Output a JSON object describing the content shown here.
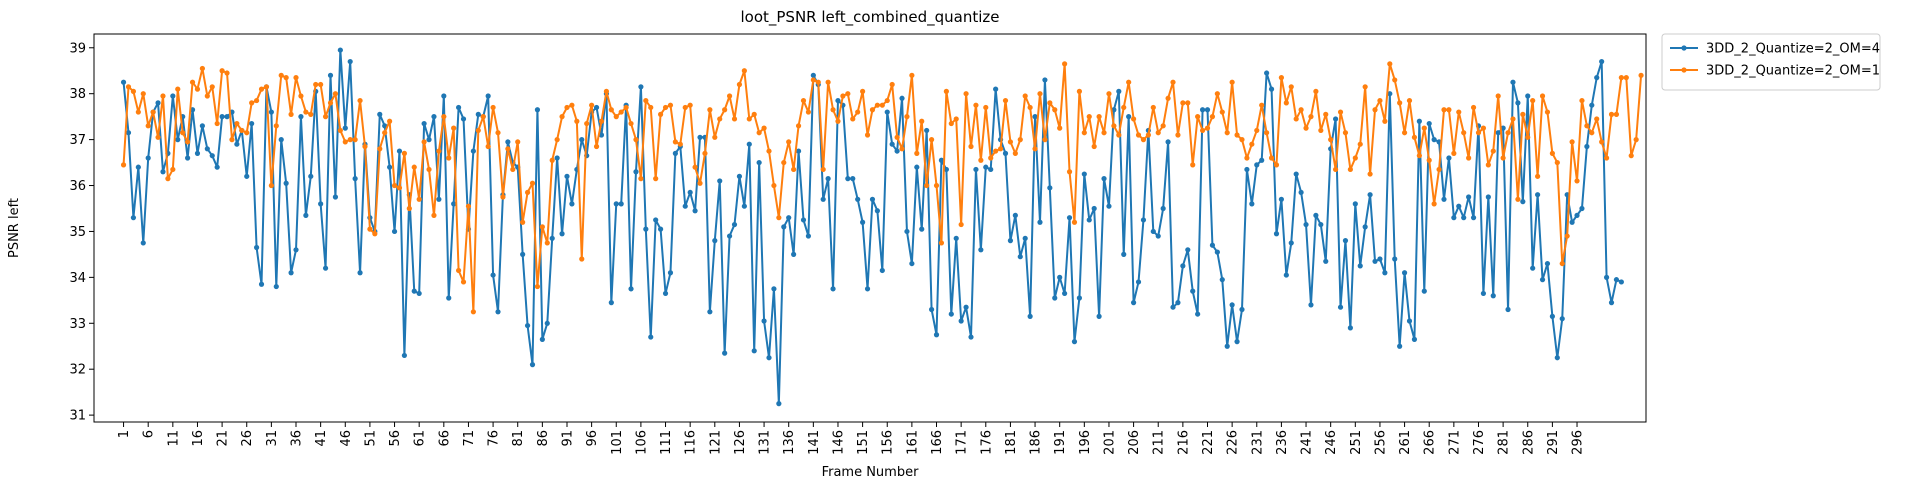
{
  "chart_data": {
    "type": "line",
    "title": "loot_PSNR left_combined_quantize",
    "xlabel": "Frame Number",
    "ylabel": "PSNR left",
    "xlim": [
      -5,
      310
    ],
    "ylim": [
      30.85,
      39.3
    ],
    "yticks": [
      31,
      32,
      33,
      34,
      35,
      36,
      37,
      38,
      39
    ],
    "xticks": [
      1,
      6,
      11,
      16,
      21,
      26,
      31,
      36,
      41,
      46,
      51,
      56,
      61,
      66,
      71,
      76,
      81,
      86,
      91,
      96,
      101,
      106,
      111,
      116,
      121,
      126,
      131,
      136,
      141,
      146,
      151,
      156,
      161,
      166,
      171,
      176,
      181,
      186,
      191,
      196,
      201,
      206,
      211,
      216,
      221,
      226,
      231,
      236,
      241,
      246,
      251,
      256,
      261,
      266,
      271,
      276,
      281,
      286,
      291,
      296
    ],
    "grid": false,
    "legend_position": "outside-top-right",
    "x_start": 1,
    "series": [
      {
        "name": "3DD_2_Quantize=2_OM=4",
        "color": "#1f77b4",
        "values": [
          38.25,
          37.15,
          35.3,
          36.4,
          34.75,
          36.6,
          37.6,
          37.8,
          36.3,
          36.7,
          37.95,
          37.0,
          37.5,
          36.6,
          37.65,
          36.7,
          37.3,
          36.8,
          36.65,
          36.4,
          37.5,
          37.5,
          37.6,
          36.9,
          37.2,
          36.2,
          37.35,
          34.65,
          33.85,
          38.15,
          37.6,
          33.8,
          37.0,
          36.05,
          34.1,
          34.6,
          37.5,
          35.35,
          36.2,
          38.05,
          35.6,
          34.2,
          38.4,
          35.75,
          38.95,
          37.25,
          38.7,
          36.15,
          34.1,
          36.9,
          35.3,
          35.0,
          37.55,
          37.3,
          36.4,
          35.0,
          36.75,
          32.3,
          35.8,
          33.7,
          33.65,
          37.35,
          37.0,
          37.5,
          35.7,
          37.95,
          33.55,
          35.6,
          37.7,
          37.45,
          35.05,
          36.75,
          37.55,
          37.5,
          37.95,
          34.05,
          33.25,
          35.8,
          36.95,
          36.5,
          36.4,
          34.5,
          32.95,
          32.1,
          37.65,
          32.65,
          33.0,
          34.85,
          36.6,
          34.95,
          36.2,
          35.6,
          36.35,
          37.0,
          36.65,
          37.6,
          37.7,
          37.1,
          38.0,
          33.45,
          35.6,
          35.6,
          37.75,
          33.75,
          36.3,
          38.15,
          35.05,
          32.7,
          35.25,
          35.05,
          33.65,
          34.1,
          36.7,
          36.85,
          35.55,
          35.85,
          35.45,
          37.05,
          37.05,
          33.25,
          34.8,
          36.1,
          32.35,
          34.9,
          35.15,
          36.2,
          35.55,
          36.9,
          32.4,
          36.5,
          33.05,
          32.25,
          33.75,
          31.25,
          35.1,
          35.3,
          34.5,
          36.75,
          35.25,
          34.9,
          38.4,
          38.2,
          35.7,
          36.15,
          33.75,
          37.85,
          37.75,
          36.15,
          36.15,
          35.7,
          35.2,
          33.75,
          35.7,
          35.45,
          34.15,
          37.6,
          36.9,
          36.75,
          37.9,
          35.0,
          34.3,
          36.4,
          35.05,
          37.2,
          33.3,
          32.75,
          36.55,
          36.35,
          33.2,
          34.85,
          33.05,
          33.35,
          32.7,
          36.35,
          34.6,
          36.4,
          36.35,
          38.1,
          37.0,
          36.7,
          34.8,
          35.35,
          34.45,
          34.85,
          33.15,
          37.5,
          35.2,
          38.3,
          35.95,
          33.55,
          34.0,
          33.65,
          35.3,
          32.6,
          33.55,
          36.25,
          35.25,
          35.5,
          33.15,
          36.15,
          35.55,
          37.65,
          38.05,
          34.5,
          37.5,
          33.45,
          33.9,
          35.25,
          37.2,
          35.0,
          34.9,
          35.5,
          36.95,
          33.35,
          33.45,
          34.25,
          34.6,
          33.7,
          33.2,
          37.65,
          37.65,
          34.7,
          34.55,
          33.95,
          32.5,
          33.4,
          32.6,
          33.3,
          36.35,
          35.6,
          36.45,
          36.55,
          38.45,
          38.1,
          34.95,
          35.7,
          34.05,
          34.75,
          36.25,
          35.85,
          35.15,
          33.4,
          35.35,
          35.15,
          34.35,
          36.8,
          37.45,
          33.35,
          34.8,
          32.9,
          35.6,
          34.25,
          35.1,
          35.8,
          34.35,
          34.4,
          34.1,
          38.0,
          34.4,
          32.5,
          34.1,
          33.05,
          32.65,
          37.4,
          33.7,
          37.35,
          37.0,
          36.95,
          35.7,
          36.6,
          35.3,
          35.55,
          35.3,
          35.75,
          35.3,
          37.3,
          33.65,
          35.75,
          33.6,
          37.15,
          37.25,
          33.3,
          38.25,
          37.8,
          35.65,
          37.95,
          34.2,
          35.8,
          33.95,
          34.3,
          33.15,
          32.25,
          33.1,
          35.8,
          35.2,
          35.35,
          35.5,
          36.85,
          37.75,
          38.35,
          38.7,
          34.0,
          33.45,
          33.95,
          33.9
        ]
      },
      {
        "name": "3DD_2_Quantize=2_OM=1",
        "color": "#ff7f0e",
        "values": [
          36.45,
          38.15,
          38.05,
          37.6,
          38.0,
          37.3,
          37.6,
          37.05,
          37.95,
          36.15,
          36.35,
          38.1,
          37.15,
          36.95,
          38.25,
          38.1,
          38.55,
          37.95,
          38.15,
          37.35,
          38.5,
          38.45,
          37.0,
          37.35,
          37.2,
          37.15,
          37.8,
          37.85,
          38.1,
          38.15,
          36.0,
          37.3,
          38.4,
          38.35,
          37.55,
          38.35,
          37.95,
          37.6,
          37.55,
          38.2,
          38.2,
          37.5,
          37.8,
          38.0,
          37.2,
          36.95,
          37.0,
          37.0,
          37.85,
          36.85,
          35.05,
          34.95,
          36.8,
          37.15,
          37.4,
          36.0,
          35.95,
          36.7,
          35.5,
          36.4,
          35.7,
          36.95,
          36.35,
          35.35,
          36.75,
          37.5,
          36.6,
          37.25,
          34.15,
          33.9,
          35.55,
          33.25,
          37.2,
          37.5,
          36.85,
          37.7,
          37.15,
          35.75,
          36.8,
          36.35,
          36.95,
          35.2,
          35.85,
          36.05,
          33.8,
          35.1,
          34.75,
          36.55,
          37.0,
          37.5,
          37.7,
          37.75,
          37.4,
          34.4,
          37.35,
          37.75,
          36.85,
          37.4,
          38.05,
          37.65,
          37.5,
          37.6,
          37.7,
          37.35,
          37.0,
          36.15,
          37.85,
          37.7,
          36.15,
          37.55,
          37.7,
          37.75,
          36.95,
          36.9,
          37.7,
          37.75,
          36.4,
          36.05,
          36.7,
          37.65,
          37.05,
          37.45,
          37.65,
          37.95,
          37.45,
          38.2,
          38.5,
          37.45,
          37.55,
          37.15,
          37.25,
          36.75,
          36.0,
          35.3,
          36.5,
          36.95,
          36.35,
          37.3,
          37.85,
          37.6,
          38.3,
          38.25,
          36.35,
          38.25,
          37.65,
          37.4,
          37.95,
          38.0,
          37.45,
          37.6,
          38.05,
          37.1,
          37.65,
          37.75,
          37.75,
          37.85,
          38.2,
          37.05,
          36.8,
          37.5,
          38.4,
          36.7,
          37.4,
          36.0,
          37.0,
          36.0,
          34.75,
          38.05,
          37.35,
          37.45,
          35.15,
          38.0,
          36.85,
          37.75,
          36.55,
          37.7,
          36.6,
          36.75,
          36.8,
          37.85,
          36.95,
          36.7,
          37.0,
          37.95,
          37.7,
          36.8,
          38.0,
          37.0,
          37.8,
          37.65,
          37.25,
          38.65,
          36.3,
          35.2,
          38.05,
          37.15,
          37.5,
          36.85,
          37.5,
          37.15,
          38.0,
          37.3,
          37.1,
          37.7,
          38.25,
          37.45,
          37.1,
          37.0,
          37.1,
          37.7,
          37.15,
          37.3,
          37.9,
          38.25,
          37.1,
          37.8,
          37.8,
          36.45,
          37.5,
          37.2,
          37.25,
          37.5,
          38.0,
          37.6,
          37.15,
          38.25,
          37.1,
          37.0,
          36.6,
          36.9,
          37.2,
          37.75,
          37.15,
          36.6,
          36.45,
          38.35,
          37.8,
          38.15,
          37.45,
          37.65,
          37.25,
          37.5,
          38.05,
          37.2,
          37.55,
          37.0,
          36.35,
          37.6,
          37.15,
          36.35,
          36.6,
          36.9,
          38.15,
          36.25,
          37.65,
          37.85,
          37.4,
          38.65,
          38.3,
          37.8,
          37.15,
          37.85,
          37.05,
          36.65,
          37.25,
          36.55,
          35.6,
          36.35,
          37.65,
          37.65,
          36.7,
          37.6,
          37.15,
          36.6,
          37.7,
          37.15,
          37.25,
          36.45,
          36.75,
          37.95,
          36.6,
          37.15,
          37.45,
          35.7,
          37.55,
          37.05,
          37.85,
          36.2,
          37.95,
          37.6,
          36.7,
          36.5,
          34.3,
          34.9,
          36.95,
          36.1,
          37.85,
          37.3,
          37.15,
          37.45,
          36.95,
          36.6,
          37.55,
          37.55,
          38.35,
          38.35,
          36.65,
          37.0,
          38.4
        ]
      }
    ]
  }
}
